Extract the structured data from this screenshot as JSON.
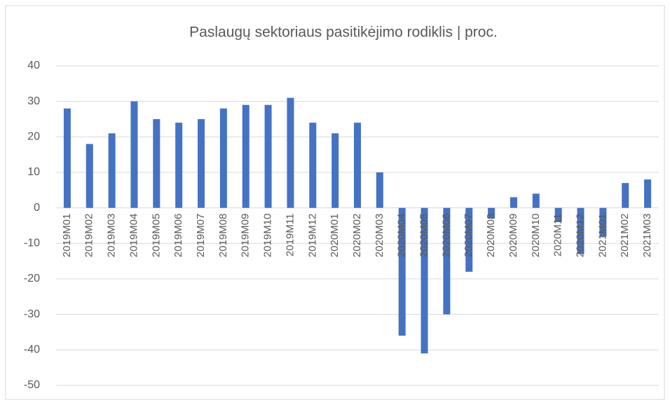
{
  "chart_data": {
    "type": "bar",
    "title": "Paslaugų sektoriaus pasitikėjimo rodiklis | proc.",
    "categories": [
      "2019M01",
      "2019M02",
      "2019M03",
      "2019M04",
      "2019M05",
      "2019M06",
      "2019M07",
      "2019M08",
      "2019M09",
      "2019M10",
      "2019M11",
      "2019M12",
      "2020M01",
      "2020M02",
      "2020M03",
      "2020M04",
      "2020M05",
      "2020M06",
      "2020M07",
      "2020M08",
      "2020M09",
      "2020M10",
      "2020M11",
      "2020M12",
      "2021M01",
      "2021M02",
      "2021M03"
    ],
    "values": [
      28,
      18,
      21,
      30,
      25,
      24,
      25,
      28,
      29,
      29,
      31,
      24,
      21,
      24,
      10,
      -36,
      -41,
      -30,
      -18,
      -3,
      3,
      4,
      -4,
      -13,
      -8,
      7,
      8
    ],
    "color": "#4472c4",
    "ylim": [
      -50,
      40
    ],
    "yticks": [
      -50,
      -40,
      -30,
      -20,
      -10,
      0,
      10,
      20,
      30,
      40
    ],
    "grid": true
  }
}
